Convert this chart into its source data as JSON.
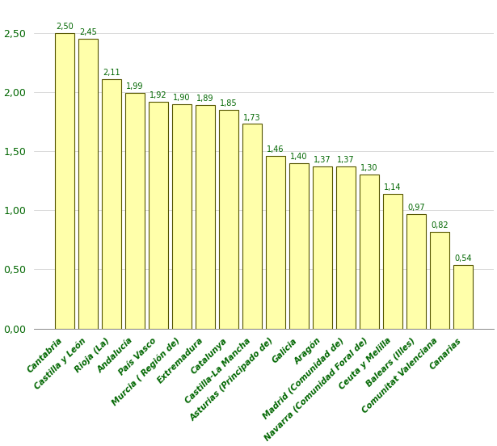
{
  "categories": [
    "Cantabria",
    "Castilla y León",
    "Rioja (La)",
    "Andalucía",
    "País Vasco",
    "Murcia ( Región de)",
    "Extremadura",
    "Catalunya",
    "Castilla-La Mancha",
    "Asturias (Principado de)",
    "Galicia",
    "Aragón",
    "Madrid (Comunidad de)",
    "Navarra (Comunidad Foral de)",
    "Ceuta y Melilla",
    "Balears (Illes)",
    "Comunitat Valenciana",
    "Canarias"
  ],
  "values": [
    2.5,
    2.45,
    2.11,
    1.99,
    1.92,
    1.9,
    1.89,
    1.85,
    1.73,
    1.46,
    1.4,
    1.37,
    1.37,
    1.3,
    1.14,
    0.97,
    0.82,
    0.54
  ],
  "bar_color": "#FFFFAA",
  "bar_edge_color": "#555500",
  "label_color": "#006600",
  "label_fontsize": 7.0,
  "tick_label_color": "#006600",
  "tick_label_fontsize": 7.5,
  "ytick_label_color": "#006600",
  "ytick_fontsize": 9,
  "ylim": [
    0,
    2.75
  ],
  "yticks": [
    0.0,
    0.5,
    1.0,
    1.5,
    2.0,
    2.5
  ],
  "ytick_labels": [
    "0,00",
    "0,50",
    "1,00",
    "1,50",
    "2,00",
    "2,50"
  ],
  "background_color": "#ffffff",
  "grid_color": "#cccccc"
}
